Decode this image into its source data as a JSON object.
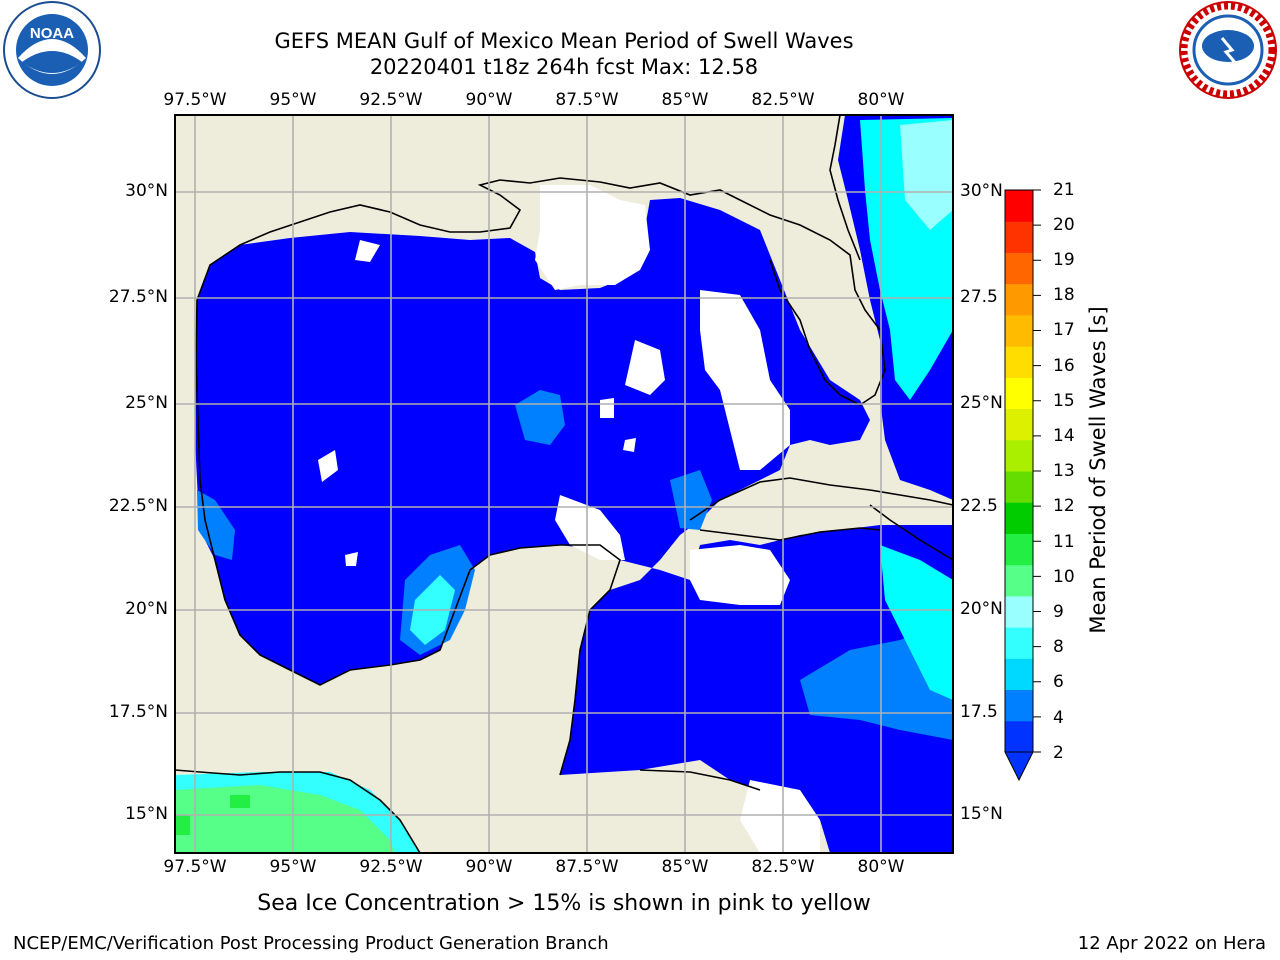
{
  "title_line1": "GEFS MEAN Gulf of Mexico Mean Period of Swell Waves",
  "title_line2": "20220401 t18z 264h fcst   Max: 12.58",
  "subtitle": "Sea Ice Concentration > 15% is shown in pink to yellow",
  "footer_left": "NCEP/EMC/Verification Post Processing Product Generation Branch",
  "footer_right": "12 Apr 2022 on Hera",
  "logos": {
    "left": "noaa-logo",
    "right": "nws-logo"
  },
  "lon_labels": [
    "97.5°W",
    "95°W",
    "92.5°W",
    "90°W",
    "87.5°W",
    "85°W",
    "82.5°W",
    "80°W"
  ],
  "lat_labels_left": [
    "30°N",
    "27.5°N",
    "25°N",
    "22.5°N",
    "20°N",
    "17.5°N",
    "15°N"
  ],
  "lat_labels_right": [
    "30°N",
    "27.5",
    "25°N",
    "22.5",
    "20°N",
    "17.5",
    "15°N"
  ],
  "colorbar": {
    "label": "Mean Period of Swell Waves [s]",
    "ticks": [
      "21",
      "20",
      "19",
      "18",
      "17",
      "16",
      "15",
      "14",
      "13",
      "12",
      "11",
      "10",
      "9",
      "8",
      "6",
      "4",
      "2"
    ],
    "colors": [
      "#0033ff",
      "#0080ff",
      "#00d9ff",
      "#33ffff",
      "#99ffff",
      "#55ff88",
      "#22ee44",
      "#00cc00",
      "#66dd00",
      "#aaee00",
      "#ddf000",
      "#ffff00",
      "#ffdd00",
      "#ffbb00",
      "#ff9900",
      "#ff6600",
      "#ff3300",
      "#ff0000"
    ]
  },
  "map_colors": {
    "land": "#eeeddc",
    "ocean": "#0000ff",
    "grid": "#b0b0b0"
  }
}
